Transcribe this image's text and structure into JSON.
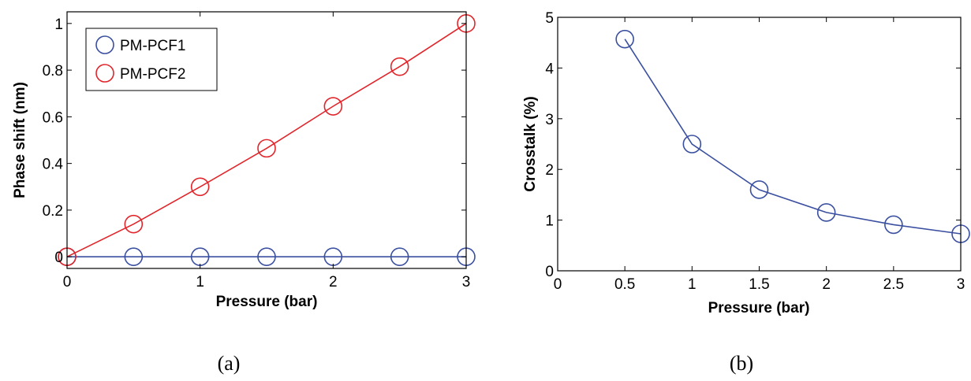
{
  "chart_data": [
    {
      "type": "line",
      "xlabel": "Pressure (bar)",
      "ylabel": "Phase shift (nm)",
      "xlim": [
        0,
        3
      ],
      "ylim": [
        -0.05,
        1.05
      ],
      "xticks": [
        0,
        1,
        2,
        3
      ],
      "xtick_labels": [
        "0",
        "1",
        "2",
        "3"
      ],
      "yticks": [
        0,
        0.2,
        0.4,
        0.6,
        0.8,
        1
      ],
      "ytick_labels": [
        "0",
        "0.2",
        "0.4",
        "0.6",
        "0.8",
        "1"
      ],
      "grid": false,
      "legend_position": "top-left",
      "series": [
        {
          "name": "PM-PCF1",
          "color": "#3a4fa0",
          "marker": "circle",
          "x": [
            0,
            0.5,
            1,
            1.5,
            2,
            2.5,
            3
          ],
          "y": [
            0,
            0,
            0,
            0,
            0,
            0,
            0
          ]
        },
        {
          "name": "PM-PCF2",
          "color": "#e0262b",
          "marker": "circle",
          "x": [
            0,
            0.5,
            1,
            1.5,
            2,
            2.5,
            3
          ],
          "y": [
            0,
            0.14,
            0.3,
            0.465,
            0.645,
            0.815,
            1.0
          ]
        }
      ],
      "caption": "(a)"
    },
    {
      "type": "line",
      "xlabel": "Pressure (bar)",
      "ylabel": "Crosstalk (%)",
      "xlim": [
        0,
        3
      ],
      "ylim": [
        0,
        5
      ],
      "xticks": [
        0,
        0.5,
        1,
        1.5,
        2,
        2.5,
        3
      ],
      "xtick_labels": [
        "0",
        "0.5",
        "1",
        "1.5",
        "2",
        "2.5",
        "3"
      ],
      "yticks": [
        0,
        1,
        2,
        3,
        4,
        5
      ],
      "ytick_labels": [
        "0",
        "1",
        "2",
        "3",
        "4",
        "5"
      ],
      "grid": false,
      "series": [
        {
          "color": "#3a4fa0",
          "marker": "circle",
          "x": [
            0.5,
            1,
            1.5,
            2,
            2.5,
            3
          ],
          "y": [
            4.57,
            2.5,
            1.6,
            1.15,
            0.91,
            0.73
          ]
        }
      ],
      "caption": "(b)"
    }
  ]
}
